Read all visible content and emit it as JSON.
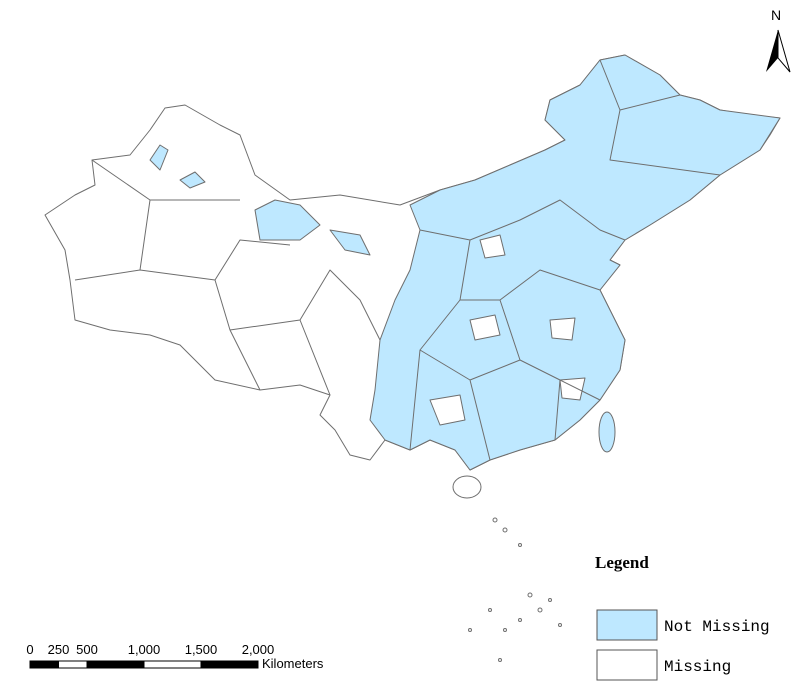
{
  "north_arrow": {
    "label": "N"
  },
  "legend": {
    "title": "Legend",
    "items": [
      {
        "label": "Not Missing",
        "color": "#bee8ff"
      },
      {
        "label": "Missing",
        "color": "#ffffff"
      }
    ]
  },
  "scale_bar": {
    "ticks": [
      0,
      250,
      500,
      {
        "value": 1000,
        "label": "1,000"
      },
      {
        "value": 1500,
        "label": "1,500"
      },
      {
        "value": 2000,
        "label": "2,000"
      }
    ],
    "unit": "Kilometers"
  }
}
